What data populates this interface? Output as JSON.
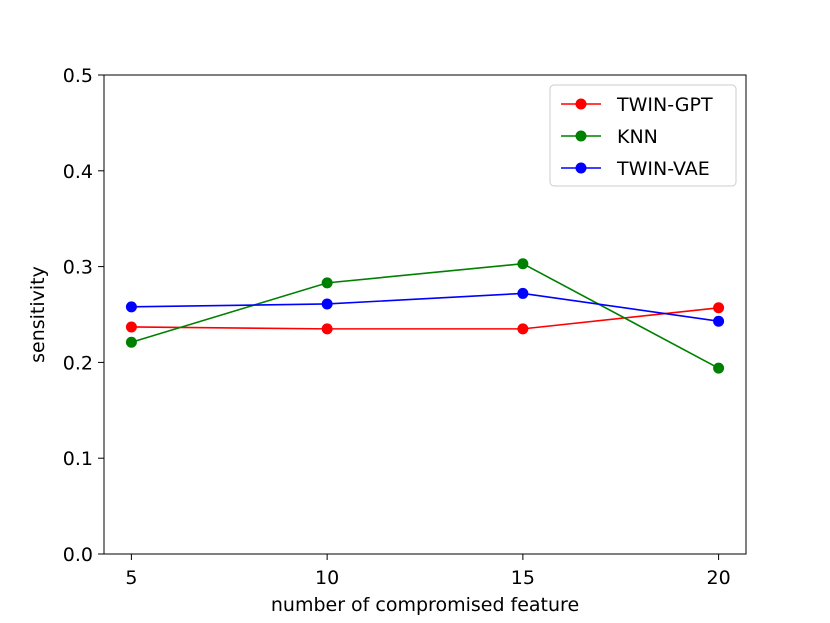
{
  "chart_data": {
    "type": "line",
    "title": "",
    "xlabel": "number of compromised feature",
    "ylabel": "sensitivity",
    "x": [
      5,
      10,
      15,
      20
    ],
    "x_ticks": [
      "5",
      "10",
      "15",
      "20"
    ],
    "y_ticks": [
      "0.0",
      "0.1",
      "0.2",
      "0.3",
      "0.4",
      "0.5"
    ],
    "xlim": [
      4.3,
      20.7
    ],
    "ylim": [
      0,
      0.5
    ],
    "grid": false,
    "legend_position": "top-right",
    "series": [
      {
        "name": "TWIN-GPT",
        "color": "#ff0000",
        "values": [
          0.237,
          0.235,
          0.235,
          0.257
        ]
      },
      {
        "name": "KNN",
        "color": "#008000",
        "values": [
          0.221,
          0.283,
          0.303,
          0.194
        ]
      },
      {
        "name": "TWIN-VAE",
        "color": "#0000ff",
        "values": [
          0.258,
          0.261,
          0.272,
          0.243
        ]
      }
    ]
  }
}
